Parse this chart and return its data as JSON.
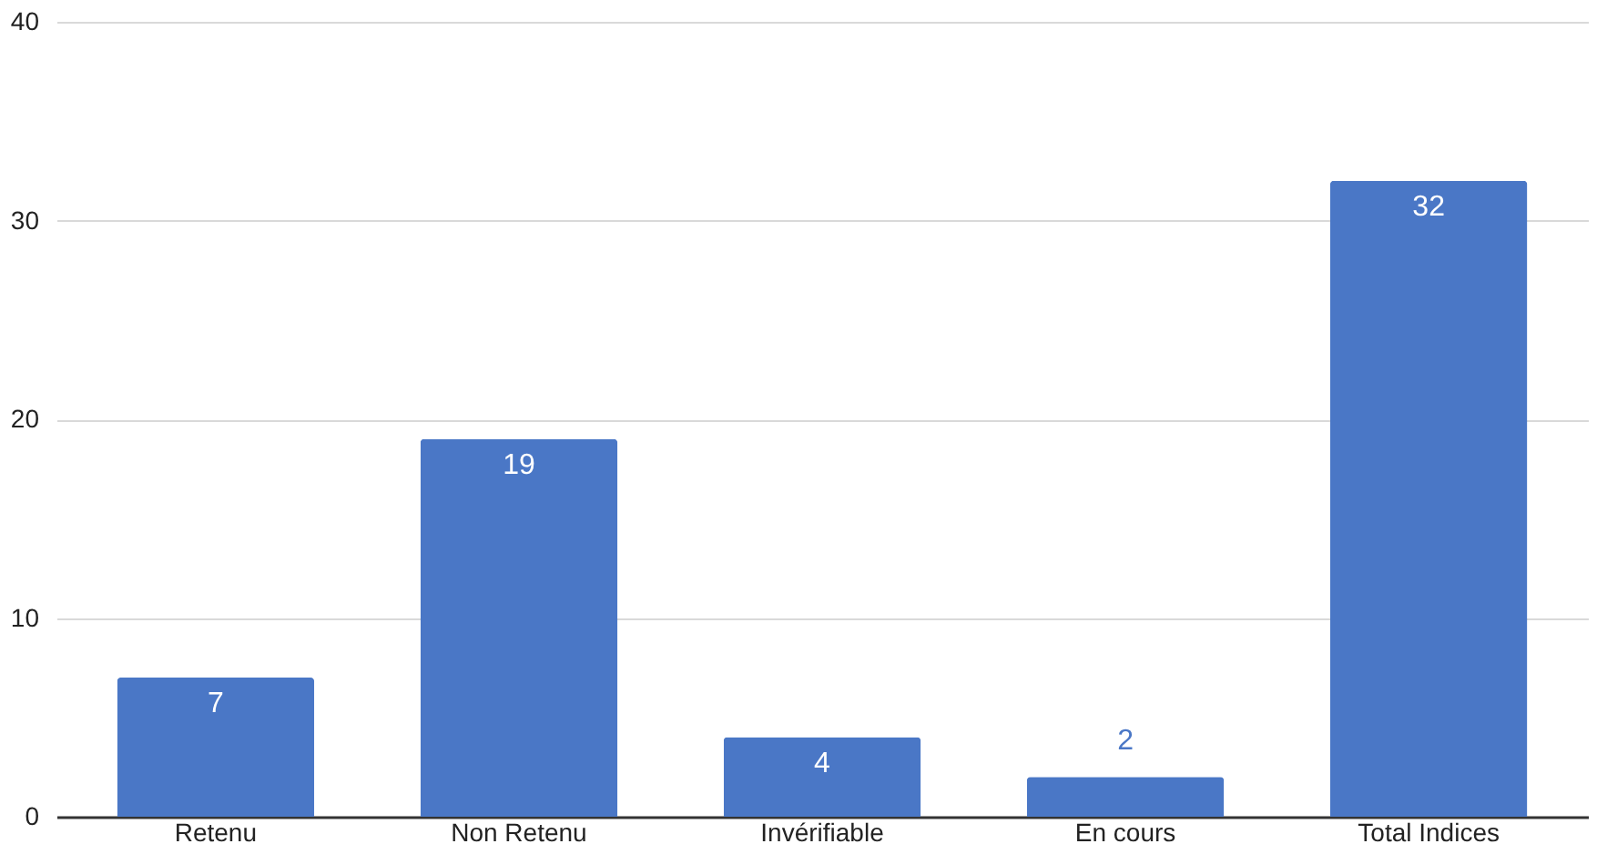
{
  "chart_data": {
    "type": "bar",
    "categories": [
      "Retenu",
      "Non Retenu",
      "Invérifiable",
      "En cours",
      "Total Indices"
    ],
    "values": [
      7,
      19,
      4,
      2,
      32
    ],
    "color": "#4a77c6",
    "ylim": [
      0,
      40
    ],
    "yticks": [
      0,
      10,
      20,
      30,
      40
    ],
    "grid": "y",
    "data_labels": true
  }
}
